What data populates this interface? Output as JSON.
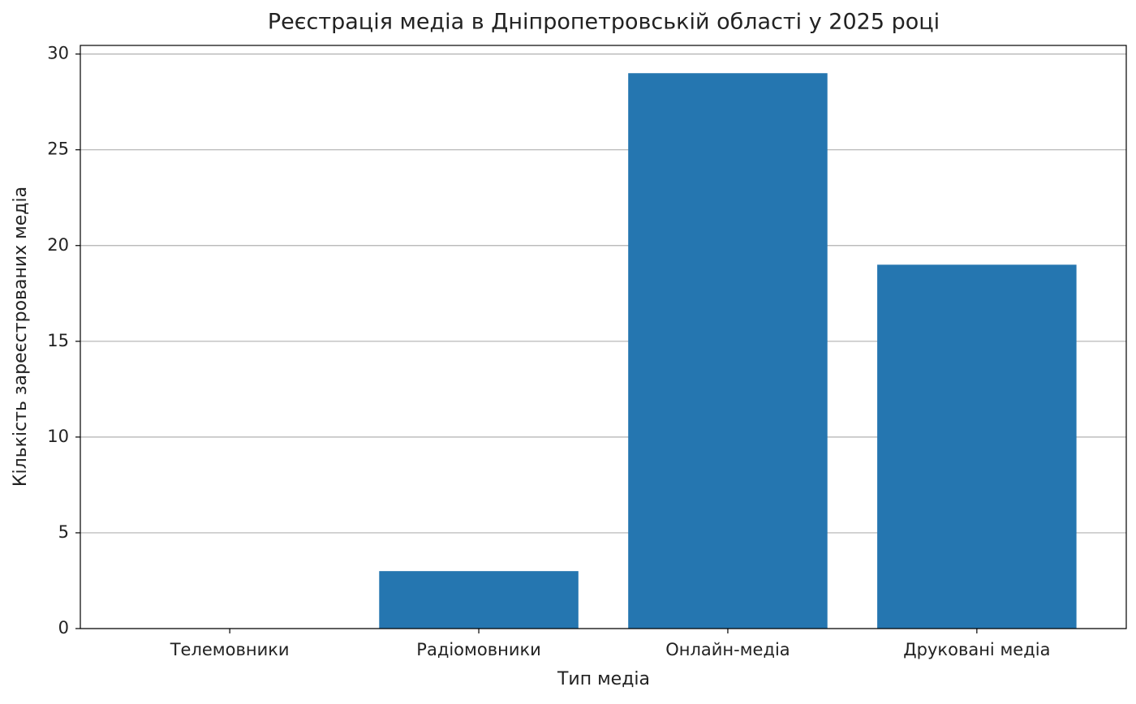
{
  "chart_data": {
    "type": "bar",
    "title": "Реєстрація медіа в Дніпропетровській області у 2025 році",
    "x_label": "Тип медіа",
    "y_label": "Кількість зареєстрованих медіа",
    "categories": [
      "Телемовники",
      "Радіомовники",
      "Онлайн-медіа",
      "Друковані медіа"
    ],
    "values": [
      0,
      3,
      29,
      19
    ],
    "color": "#2576b0",
    "ylim": [
      0,
      30.45
    ],
    "yticks": [
      0,
      5,
      10,
      15,
      20,
      25,
      30
    ],
    "grid": true
  }
}
